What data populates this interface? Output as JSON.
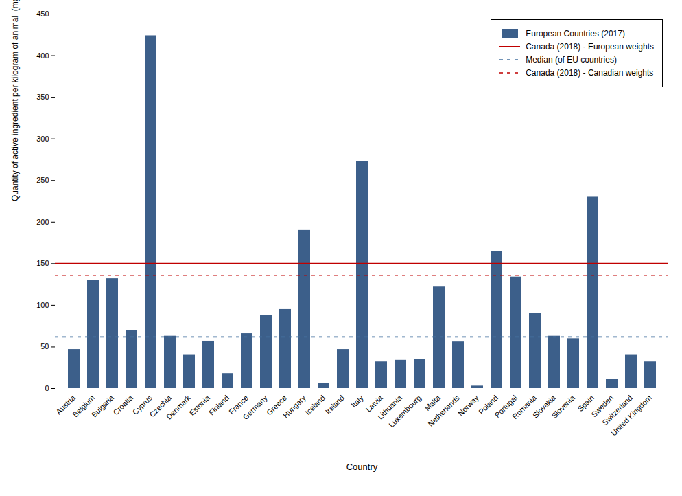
{
  "chart_data": {
    "type": "bar",
    "xlabel": "Country",
    "ylabel": "Quantity of active ingredient per kilogram of animal  (mg/PCU)",
    "categories": [
      "Austria",
      "Belgium",
      "Bulgaria",
      "Croatia",
      "Cyprus",
      "Czechia",
      "Denmark",
      "Estonia",
      "Finland",
      "France",
      "Germany",
      "Greece",
      "Hungary",
      "Iceland",
      "Ireland",
      "Italy",
      "Latvia",
      "Lithuania",
      "Luxembourg",
      "Malta",
      "Netherlands",
      "Norway",
      "Poland",
      "Portugal",
      "Romania",
      "Slovakia",
      "Slovenia",
      "Spain",
      "Sweden",
      "Switzerland",
      "United Kingdom"
    ],
    "series": [
      {
        "name": "European Countries (2017)",
        "type": "bar",
        "color": "#3c5f8a",
        "values": [
          47,
          130,
          132,
          70,
          424,
          63,
          40,
          57,
          18,
          66,
          88,
          95,
          190,
          6,
          47,
          273,
          32,
          34,
          35,
          122,
          56,
          3,
          165,
          134,
          90,
          63,
          60,
          230,
          11,
          40,
          32
        ]
      },
      {
        "name": "Canada (2018) - European weights",
        "type": "hline",
        "color": "#c00000",
        "line_style": "solid",
        "value": 150
      },
      {
        "name": "Median (of EU countries)",
        "type": "hline",
        "color": "#4472a0",
        "line_style": "dashed",
        "value": 62
      },
      {
        "name": "Canada (2018) - Canadian weights",
        "type": "hline",
        "color": "#c00000",
        "line_style": "dashed",
        "value": 136
      }
    ],
    "ylim": [
      0,
      450
    ],
    "yticks": [
      0,
      50,
      100,
      150,
      200,
      250,
      300,
      350,
      400,
      450
    ],
    "grid": false,
    "legend": "upper right"
  }
}
